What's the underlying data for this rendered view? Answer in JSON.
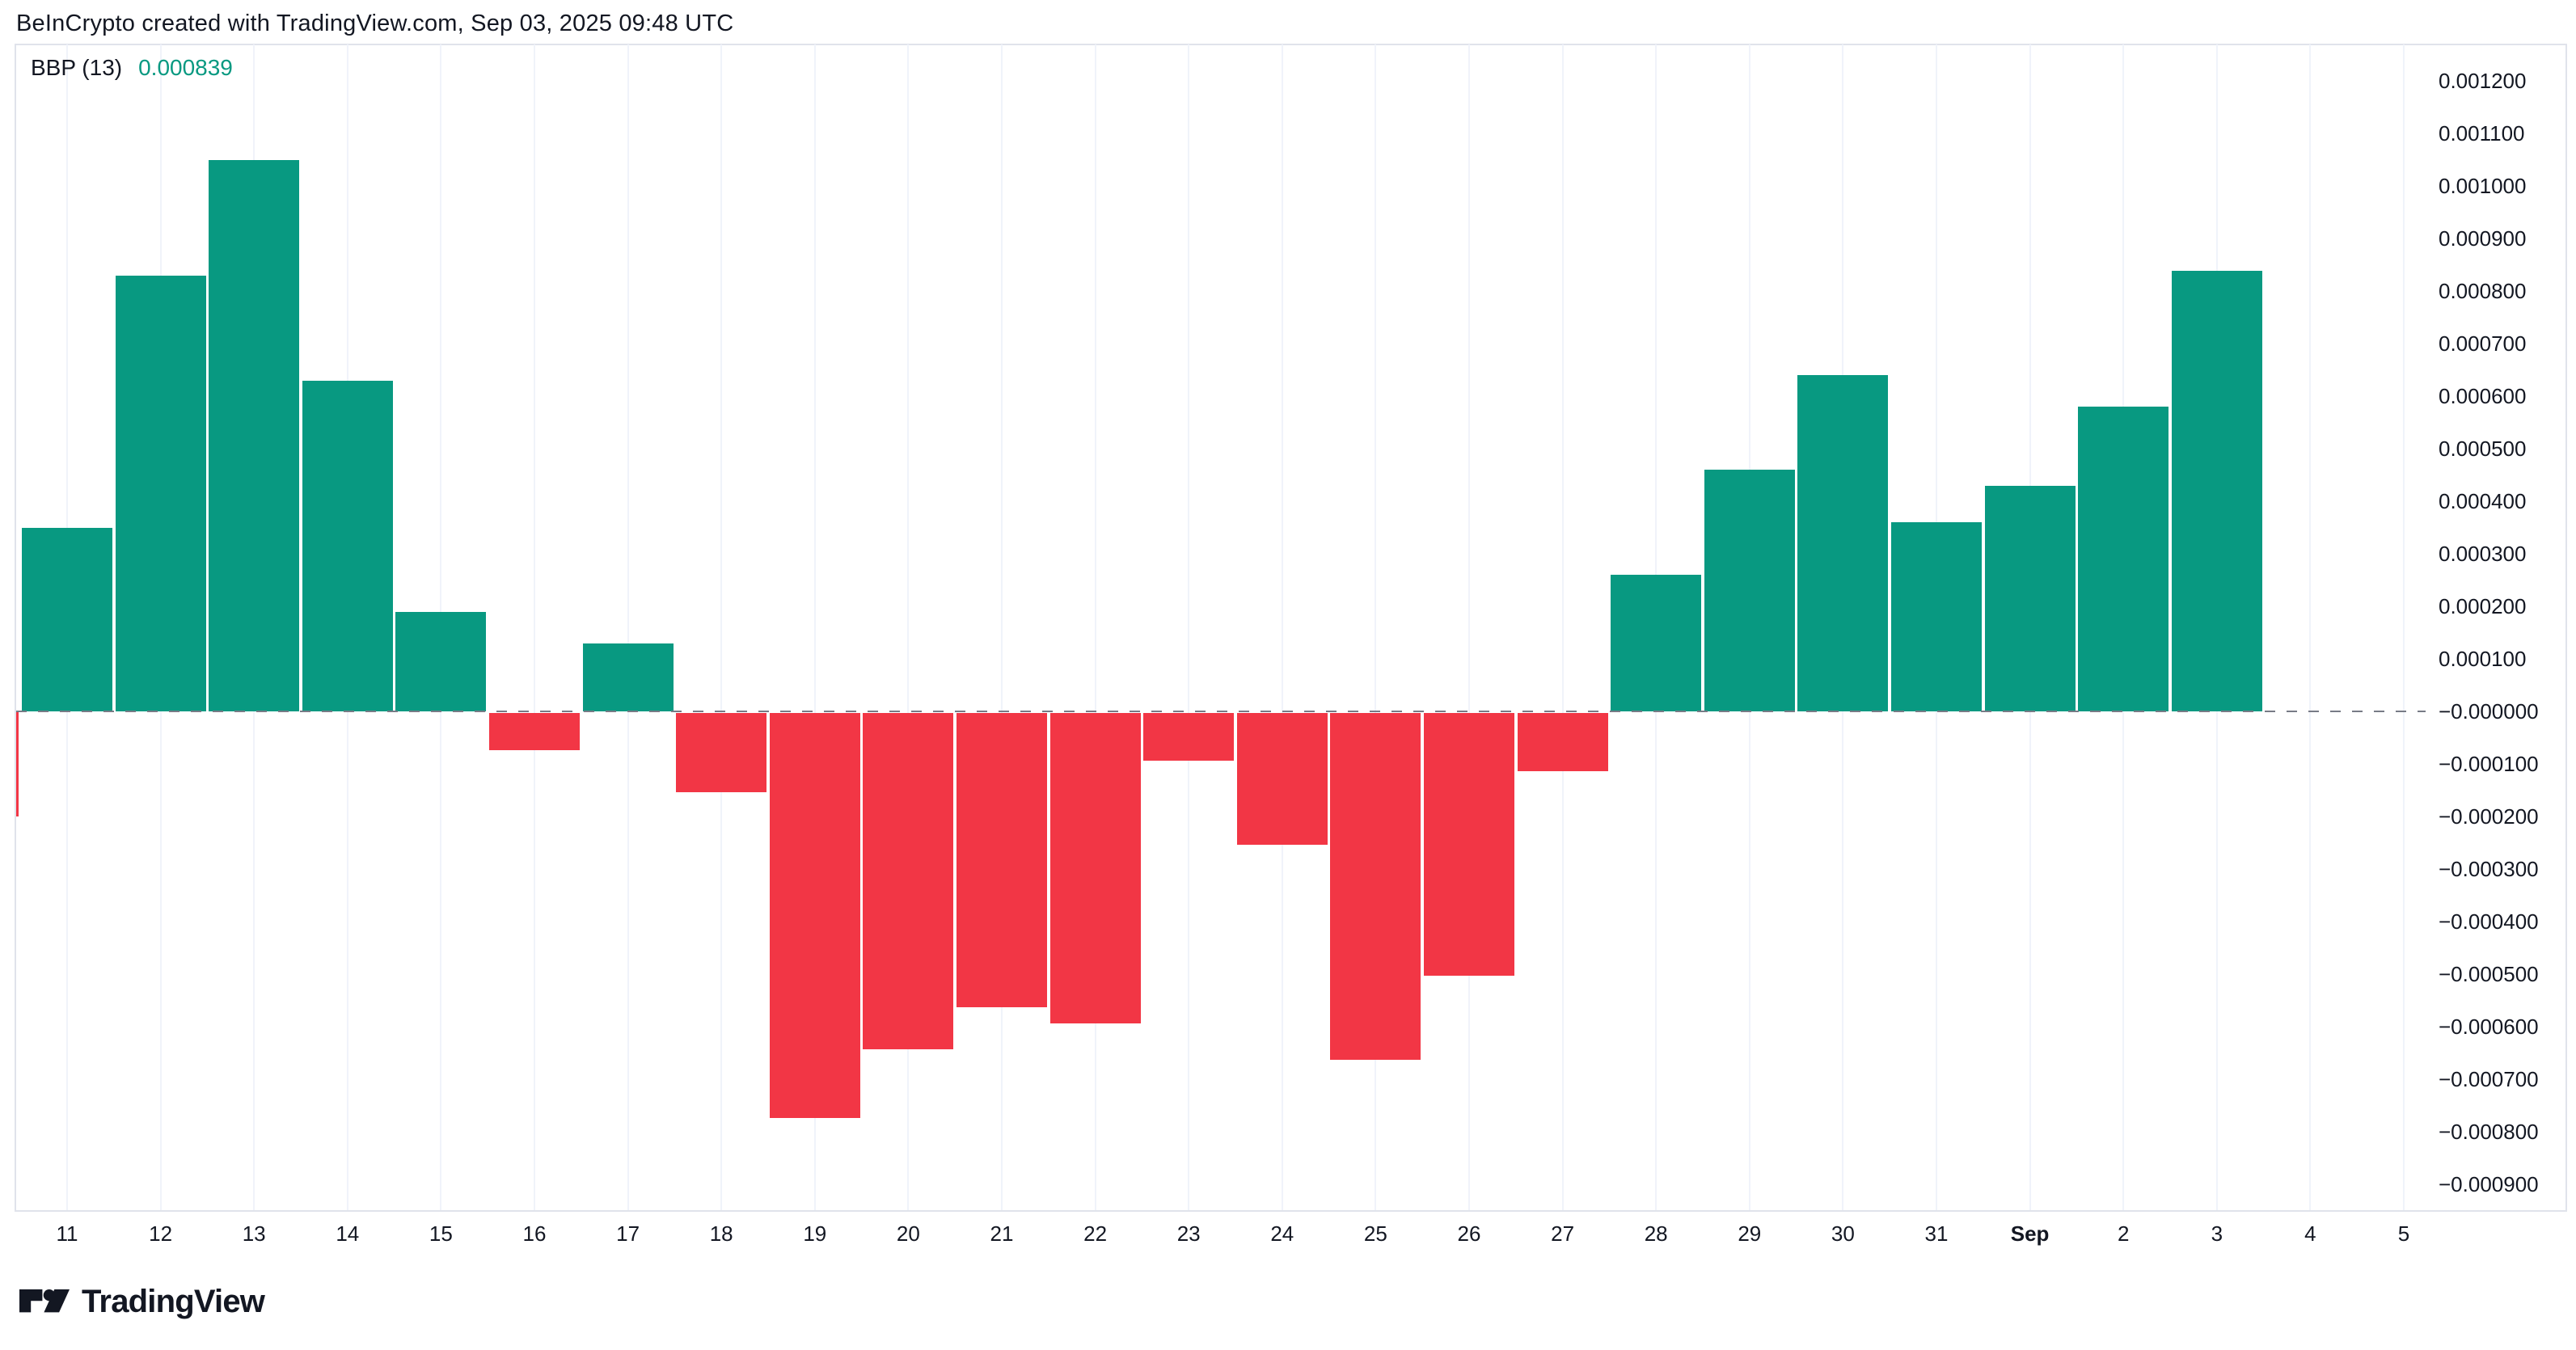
{
  "header": {
    "title": "BeInCrypto created with TradingView.com, Sep 03, 2025 09:48 UTC"
  },
  "indicator": {
    "name": "BBP (13)",
    "value": "0.000839",
    "value_color": "#089981"
  },
  "chart_data": {
    "type": "bar",
    "title": "BBP (13)",
    "categories": [
      "11",
      "12",
      "13",
      "14",
      "15",
      "16",
      "17",
      "18",
      "19",
      "20",
      "21",
      "22",
      "23",
      "24",
      "25",
      "26",
      "27",
      "28",
      "29",
      "30",
      "31",
      "Sep",
      "2",
      "3",
      "4",
      "5"
    ],
    "series": [
      {
        "name": "BBP (13)",
        "values": [
          0.00035,
          0.00083,
          0.00105,
          0.00063,
          0.00019,
          -7e-05,
          0.00013,
          -0.00015,
          -0.00077,
          -0.00064,
          -0.00056,
          -0.00059,
          -9e-05,
          -0.00025,
          -0.00066,
          -0.0005,
          -0.00011,
          0.00026,
          0.00046,
          0.00064,
          0.00036,
          0.00043,
          0.00058,
          0.000839,
          null,
          null
        ]
      }
    ],
    "clipped_left_bar_value": -0.0002,
    "current_value": 0.000839,
    "bold_category": "Sep",
    "xlabel": "",
    "ylabel": "",
    "ylim": [
      -0.00095,
      0.00127
    ],
    "y_tick_labels": [
      "0.001200",
      "0.001100",
      "0.001000",
      "0.000900",
      "0.000800",
      "0.000700",
      "0.000600",
      "0.000500",
      "0.000400",
      "0.000300",
      "0.000200",
      "0.000100",
      "−0.000000",
      "−0.000100",
      "−0.000200",
      "−0.000300",
      "−0.000400",
      "−0.000500",
      "−0.000600",
      "−0.000700",
      "−0.000800",
      "−0.000900"
    ],
    "grid": "faint-vertical",
    "zero_line": "dashed",
    "legend_position": "top-left",
    "colors": {
      "positive": "#089981",
      "negative": "#f23645",
      "zero_line": "#787b86",
      "text": "#131722"
    }
  },
  "footer": {
    "logo_text": "TradingView"
  }
}
